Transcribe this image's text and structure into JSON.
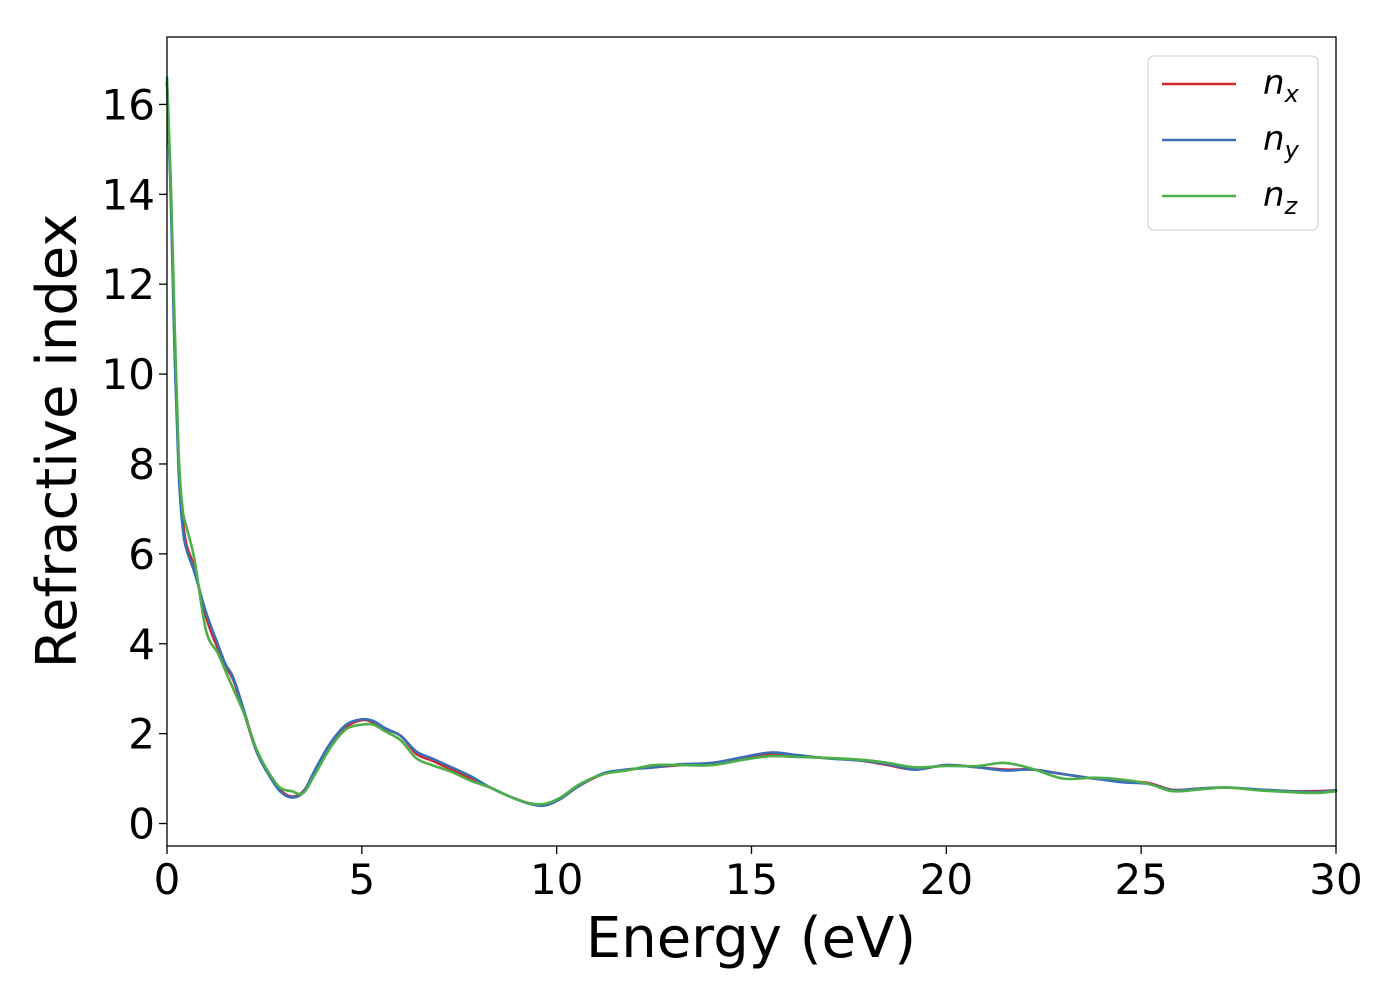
{
  "chart_data": {
    "type": "line",
    "title": "",
    "xlabel": "Energy (eV)",
    "ylabel": "Refractive index",
    "xlim": [
      0,
      30
    ],
    "ylim": [
      -0.5,
      17.5
    ],
    "xticks": [
      0,
      5,
      10,
      15,
      20,
      25,
      30
    ],
    "yticks": [
      0,
      2,
      4,
      6,
      8,
      10,
      12,
      14,
      16
    ],
    "grid": false,
    "legend_position": "top-right",
    "series": [
      {
        "name": "n_x",
        "label_base": "n",
        "label_sub": "x",
        "color": "#d62728",
        "x": [
          0.0,
          0.1,
          0.2,
          0.3,
          0.4,
          0.5,
          0.7,
          1.0,
          1.3,
          1.5,
          1.7,
          2.0,
          2.3,
          2.6,
          2.9,
          3.2,
          3.5,
          3.8,
          4.2,
          4.6,
          5.0,
          5.3,
          5.6,
          6.0,
          6.4,
          6.8,
          7.3,
          7.8,
          8.3,
          8.8,
          9.3,
          9.7,
          10.1,
          10.6,
          11.2,
          11.8,
          12.5,
          13.2,
          14.0,
          14.8,
          15.5,
          16.2,
          17.0,
          17.8,
          18.5,
          19.2,
          20.0,
          20.8,
          21.5,
          22.2,
          23.0,
          23.8,
          24.5,
          25.2,
          25.8,
          26.5,
          27.2,
          28.0,
          28.8,
          29.5,
          30.0
        ],
        "y": [
          16.5,
          14.0,
          10.5,
          8.0,
          6.8,
          6.2,
          5.7,
          4.6,
          3.9,
          3.5,
          3.2,
          2.4,
          1.6,
          1.1,
          0.75,
          0.6,
          0.72,
          1.15,
          1.75,
          2.15,
          2.3,
          2.25,
          2.1,
          1.95,
          1.55,
          1.4,
          1.2,
          1.0,
          0.8,
          0.6,
          0.45,
          0.42,
          0.55,
          0.85,
          1.1,
          1.2,
          1.25,
          1.3,
          1.35,
          1.45,
          1.55,
          1.5,
          1.45,
          1.4,
          1.3,
          1.2,
          1.3,
          1.25,
          1.2,
          1.2,
          1.1,
          1.0,
          0.95,
          0.9,
          0.75,
          0.78,
          0.8,
          0.75,
          0.72,
          0.72,
          0.74
        ]
      },
      {
        "name": "n_y",
        "label_base": "n",
        "label_sub": "y",
        "color": "#3a6fb7",
        "x": [
          0.0,
          0.1,
          0.2,
          0.3,
          0.4,
          0.5,
          0.7,
          1.0,
          1.3,
          1.5,
          1.7,
          2.0,
          2.3,
          2.6,
          2.9,
          3.2,
          3.5,
          3.8,
          4.2,
          4.6,
          5.0,
          5.3,
          5.6,
          6.0,
          6.4,
          6.8,
          7.3,
          7.8,
          8.3,
          8.8,
          9.3,
          9.7,
          10.1,
          10.6,
          11.2,
          11.8,
          12.5,
          13.2,
          14.0,
          14.8,
          15.5,
          16.2,
          17.0,
          17.8,
          18.5,
          19.2,
          20.0,
          20.8,
          21.5,
          22.2,
          23.0,
          23.8,
          24.5,
          25.2,
          25.8,
          26.5,
          27.2,
          28.0,
          28.8,
          29.5,
          30.0
        ],
        "y": [
          16.5,
          13.8,
          10.3,
          7.8,
          6.6,
          6.1,
          5.6,
          4.7,
          4.0,
          3.55,
          3.25,
          2.45,
          1.6,
          1.1,
          0.72,
          0.58,
          0.7,
          1.2,
          1.8,
          2.2,
          2.32,
          2.28,
          2.12,
          1.95,
          1.6,
          1.45,
          1.25,
          1.05,
          0.8,
          0.6,
          0.44,
          0.4,
          0.55,
          0.85,
          1.12,
          1.2,
          1.25,
          1.32,
          1.35,
          1.48,
          1.58,
          1.52,
          1.45,
          1.4,
          1.32,
          1.2,
          1.3,
          1.25,
          1.18,
          1.2,
          1.1,
          1.0,
          0.92,
          0.88,
          0.74,
          0.78,
          0.8,
          0.76,
          0.72,
          0.7,
          0.74
        ]
      },
      {
        "name": "n_z",
        "label_base": "n",
        "label_sub": "z",
        "color": "#4daf4a",
        "x": [
          0.0,
          0.1,
          0.2,
          0.3,
          0.4,
          0.5,
          0.7,
          1.0,
          1.3,
          1.5,
          1.7,
          2.0,
          2.3,
          2.6,
          2.9,
          3.2,
          3.5,
          3.8,
          4.2,
          4.6,
          5.0,
          5.3,
          5.6,
          6.0,
          6.4,
          6.8,
          7.3,
          7.8,
          8.3,
          8.8,
          9.3,
          9.7,
          10.1,
          10.6,
          11.2,
          11.8,
          12.5,
          13.2,
          14.0,
          14.8,
          15.5,
          16.2,
          17.0,
          17.8,
          18.5,
          19.2,
          20.0,
          20.8,
          21.5,
          22.2,
          23.0,
          23.8,
          24.5,
          25.2,
          25.8,
          26.5,
          27.2,
          28.0,
          28.8,
          29.5,
          30.0
        ],
        "y": [
          16.6,
          14.2,
          11.0,
          8.2,
          7.0,
          6.6,
          5.9,
          4.3,
          3.8,
          3.4,
          3.0,
          2.4,
          1.65,
          1.15,
          0.8,
          0.72,
          0.68,
          1.1,
          1.7,
          2.1,
          2.2,
          2.2,
          2.05,
          1.85,
          1.45,
          1.3,
          1.15,
          0.95,
          0.8,
          0.6,
          0.45,
          0.44,
          0.58,
          0.88,
          1.1,
          1.18,
          1.3,
          1.3,
          1.3,
          1.42,
          1.5,
          1.48,
          1.46,
          1.42,
          1.35,
          1.25,
          1.28,
          1.28,
          1.35,
          1.22,
          1.0,
          1.02,
          0.98,
          0.88,
          0.72,
          0.76,
          0.8,
          0.74,
          0.7,
          0.68,
          0.72
        ]
      }
    ]
  }
}
